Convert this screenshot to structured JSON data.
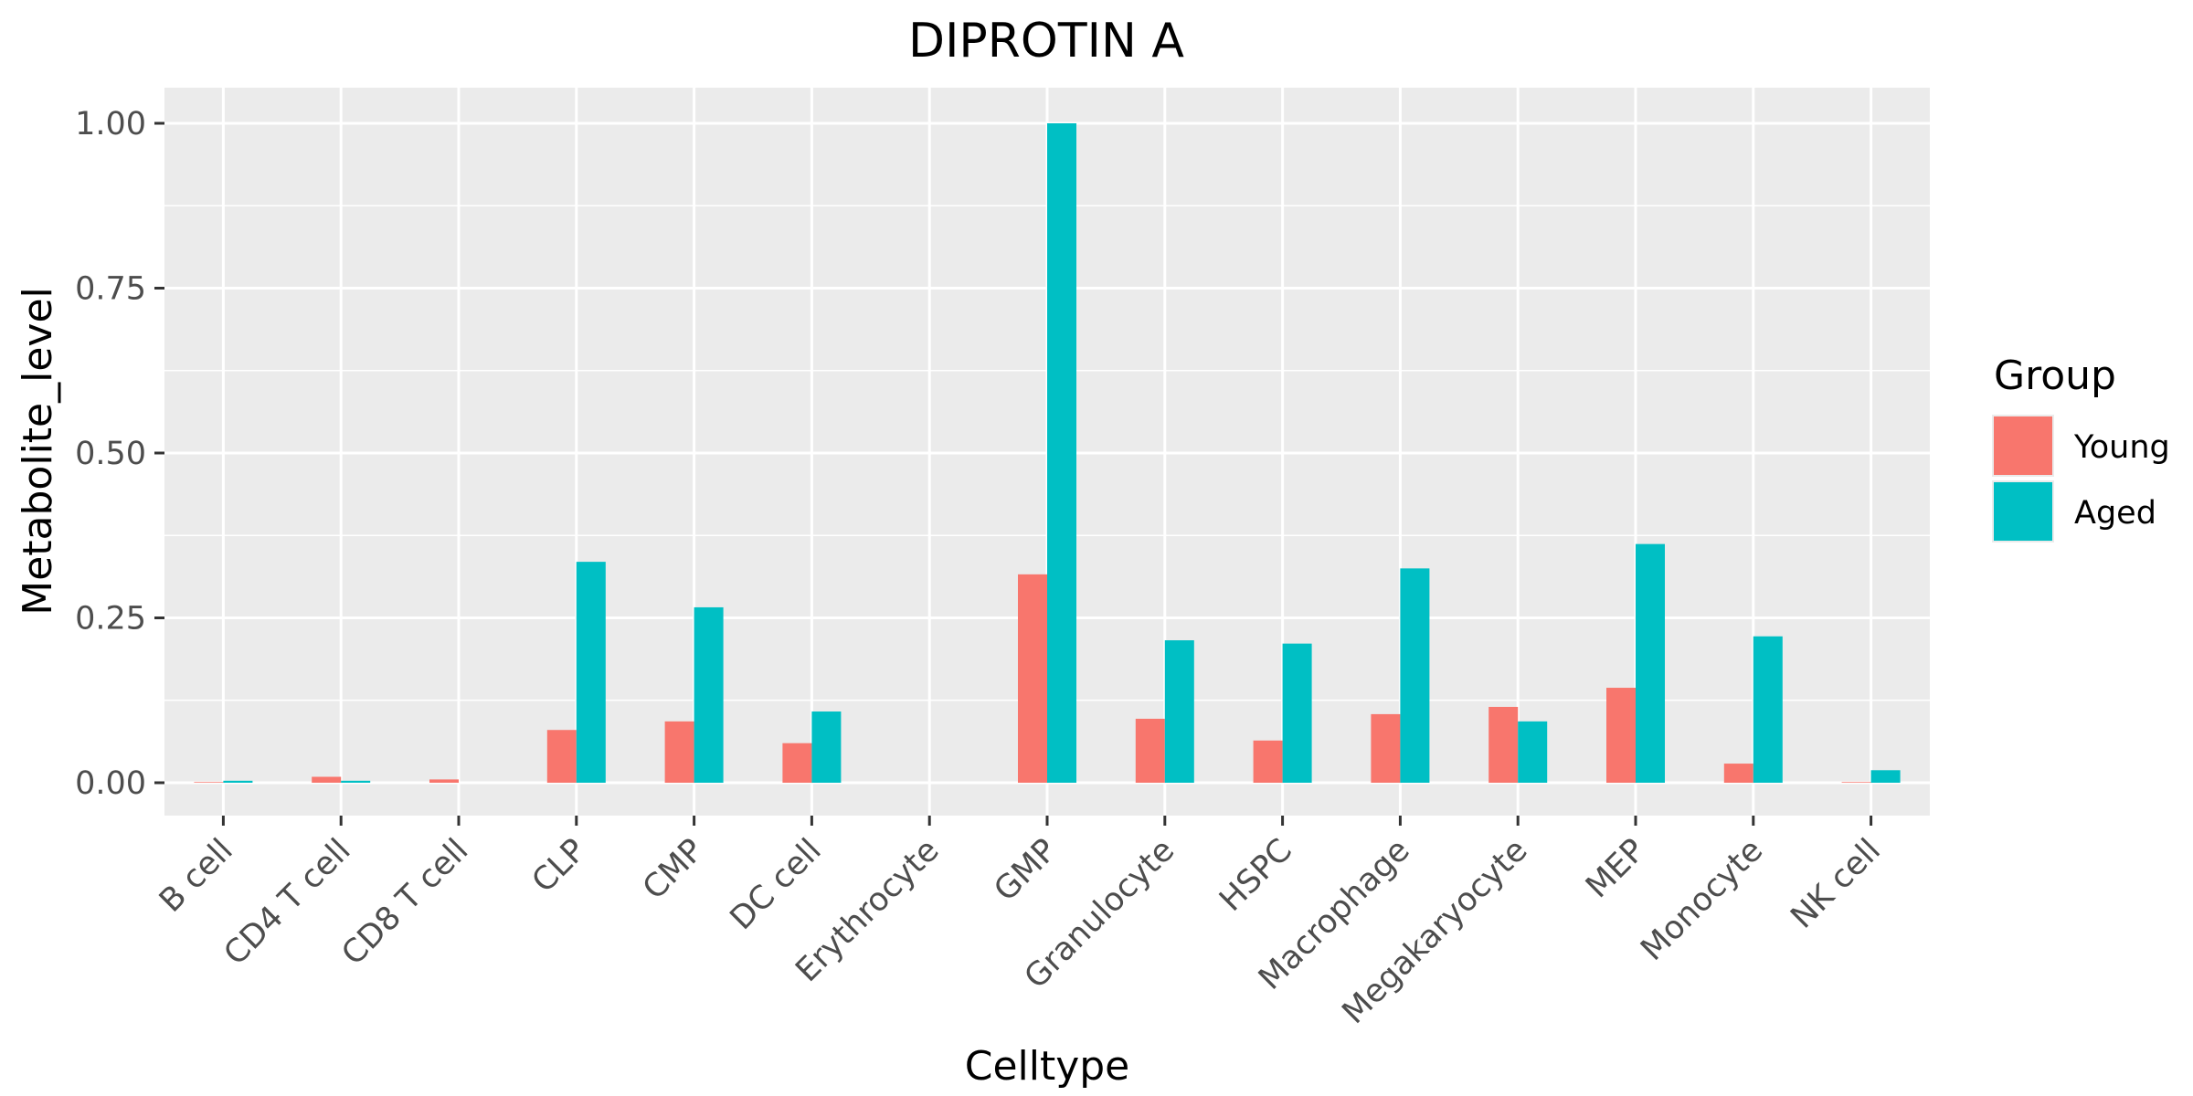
{
  "chart_data": {
    "type": "bar",
    "title": "DIPROTIN A",
    "xlabel": "Celltype",
    "ylabel": "Metabolite_level",
    "categories": [
      "B cell",
      "CD4 T cell",
      "CD8 T cell",
      "CLP",
      "CMP",
      "DC cell",
      "Erythrocyte",
      "GMP",
      "Granulocyte",
      "HSPC",
      "Macrophage",
      "Megakaryocyte",
      "MEP",
      "Monocyte",
      "NK cell"
    ],
    "series": [
      {
        "name": "Young",
        "color": "#F8766D",
        "values": [
          0.001,
          0.009,
          0.005,
          0.08,
          0.093,
          0.06,
          0.0,
          0.316,
          0.097,
          0.064,
          0.104,
          0.115,
          0.144,
          0.029,
          0.001
        ]
      },
      {
        "name": "Aged",
        "color": "#00BFC4",
        "values": [
          0.003,
          0.003,
          0.0,
          0.335,
          0.266,
          0.108,
          0.0,
          1.0,
          0.216,
          0.211,
          0.325,
          0.093,
          0.362,
          0.222,
          0.019
        ]
      }
    ],
    "ylim": [
      -0.05,
      1.05
    ],
    "yticks": [
      0.0,
      0.25,
      0.5,
      0.75,
      1.0
    ],
    "ytick_labels": [
      "0.00",
      "0.25",
      "0.50",
      "0.75",
      "1.00"
    ],
    "grid": true,
    "legend": {
      "title": "Group",
      "position": "right"
    }
  }
}
